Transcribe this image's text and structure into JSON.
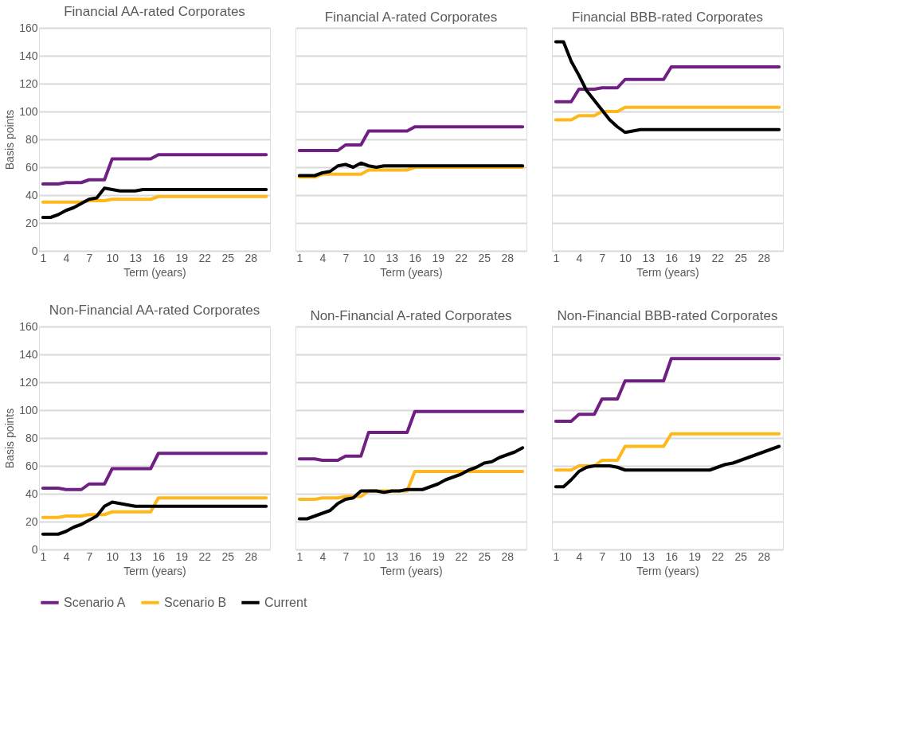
{
  "chart_data": [
    {
      "type": "line",
      "title": "Financial AA-rated Corporates",
      "xlabel": "Term (years)",
      "ylabel": "Basis points",
      "categories": [
        "1",
        null,
        null,
        "4",
        null,
        null,
        "7",
        null,
        null,
        "10",
        null,
        null,
        "13",
        null,
        null,
        "16",
        null,
        null,
        "19",
        null,
        null,
        "22",
        null,
        null,
        "25",
        null,
        null,
        "28",
        null,
        null
      ],
      "ylim": [
        0,
        160
      ],
      "yticks": [
        0,
        20,
        40,
        60,
        80,
        100,
        120,
        140,
        160
      ],
      "grid": "y",
      "legend": "bottom",
      "line_style": "solid",
      "series": [
        {
          "name": "Scenario A",
          "color": "#702082",
          "values": [
            48,
            48,
            48,
            49,
            49,
            49,
            51,
            51,
            51,
            66,
            66,
            66,
            66,
            66,
            66,
            69,
            69,
            69,
            69,
            69,
            69,
            69,
            69,
            69,
            69,
            69,
            69,
            69,
            69,
            69
          ]
        },
        {
          "name": "Scenario B",
          "color": "#ffb81c",
          "values": [
            35,
            35,
            35,
            35,
            35,
            35,
            36,
            36,
            36,
            37,
            37,
            37,
            37,
            37,
            37,
            39,
            39,
            39,
            39,
            39,
            39,
            39,
            39,
            39,
            39,
            39,
            39,
            39,
            39,
            39
          ]
        },
        {
          "name": "Current",
          "color": "#000000",
          "values": [
            24,
            24,
            26,
            29,
            31,
            34,
            37,
            38,
            45,
            44,
            43,
            43,
            43,
            44,
            44,
            44,
            44,
            44,
            44,
            44,
            44,
            44,
            44,
            44,
            44,
            44,
            44,
            44,
            44,
            44
          ]
        }
      ]
    },
    {
      "type": "line",
      "title": "Financial A-rated Corporates",
      "xlabel": "Term (years)",
      "tick_labels": "x",
      "categories": [
        "1",
        null,
        null,
        "4",
        null,
        null,
        "7",
        null,
        null,
        "10",
        null,
        null,
        "13",
        null,
        null,
        "16",
        null,
        null,
        "19",
        null,
        null,
        "22",
        null,
        null,
        "25",
        null,
        null,
        "28",
        null,
        null
      ],
      "ylim": [
        0,
        160
      ],
      "yticks": [
        0,
        20,
        40,
        60,
        80,
        100,
        120,
        140,
        160
      ],
      "grid": "y",
      "legend": "bottom",
      "line_style": "solid",
      "series": [
        {
          "name": "Scenario A",
          "color": "#702082",
          "values": [
            72,
            72,
            72,
            72,
            72,
            72,
            76,
            76,
            76,
            86,
            86,
            86,
            86,
            86,
            86,
            89,
            89,
            89,
            89,
            89,
            89,
            89,
            89,
            89,
            89,
            89,
            89,
            89,
            89,
            89
          ]
        },
        {
          "name": "Scenario B",
          "color": "#ffb81c",
          "values": [
            53,
            53,
            53,
            55,
            55,
            55,
            55,
            55,
            55,
            58,
            58,
            58,
            58,
            58,
            58,
            60,
            60,
            60,
            60,
            60,
            60,
            60,
            60,
            60,
            60,
            60,
            60,
            60,
            60,
            60
          ]
        },
        {
          "name": "Current",
          "color": "#000000",
          "values": [
            54,
            54,
            54,
            56,
            57,
            61,
            62,
            60,
            63,
            61,
            60,
            61,
            61,
            61,
            61,
            61,
            61,
            61,
            61,
            61,
            61,
            61,
            61,
            61,
            61,
            61,
            61,
            61,
            61,
            61
          ]
        }
      ]
    },
    {
      "type": "line",
      "title": "Financial BBB-rated Corporates",
      "xlabel": "Term (years)",
      "tick_labels": "x",
      "categories": [
        "1",
        null,
        null,
        "4",
        null,
        null,
        "7",
        null,
        null,
        "10",
        null,
        null,
        "13",
        null,
        null,
        "16",
        null,
        null,
        "19",
        null,
        null,
        "22",
        null,
        null,
        "25",
        null,
        null,
        "28",
        null,
        null
      ],
      "ylim": [
        0,
        160
      ],
      "yticks": [
        0,
        20,
        40,
        60,
        80,
        100,
        120,
        140,
        160
      ],
      "grid": "y",
      "legend": "bottom",
      "line_style": "solid",
      "series": [
        {
          "name": "Scenario A",
          "color": "#702082",
          "values": [
            107,
            107,
            107,
            116,
            116,
            116,
            117,
            117,
            117,
            123,
            123,
            123,
            123,
            123,
            123,
            132,
            132,
            132,
            132,
            132,
            132,
            132,
            132,
            132,
            132,
            132,
            132,
            132,
            132,
            132
          ]
        },
        {
          "name": "Scenario B",
          "color": "#ffb81c",
          "values": [
            94,
            94,
            94,
            97,
            97,
            97,
            100,
            100,
            100,
            103,
            103,
            103,
            103,
            103,
            103,
            103,
            103,
            103,
            103,
            103,
            103,
            103,
            103,
            103,
            103,
            103,
            103,
            103,
            103,
            103
          ]
        },
        {
          "name": "Current",
          "color": "#000000",
          "values": [
            150,
            150,
            136,
            126,
            115,
            108,
            101,
            94,
            89,
            85,
            86,
            87,
            87,
            87,
            87,
            87,
            87,
            87,
            87,
            87,
            87,
            87,
            87,
            87,
            87,
            87,
            87,
            87,
            87,
            87
          ]
        }
      ]
    },
    {
      "type": "line",
      "title": "Non-Financial AA-rated Corporates",
      "xlabel": "Term (years)",
      "ylabel": "Basis points",
      "categories": [
        "1",
        null,
        null,
        "4",
        null,
        null,
        "7",
        null,
        null,
        "10",
        null,
        null,
        "13",
        null,
        null,
        "16",
        null,
        null,
        "19",
        null,
        null,
        "22",
        null,
        null,
        "25",
        null,
        null,
        "28",
        null,
        null
      ],
      "ylim": [
        0,
        160
      ],
      "yticks": [
        0,
        20,
        40,
        60,
        80,
        100,
        120,
        140,
        160
      ],
      "grid": "y",
      "legend": "bottom",
      "line_style": "solid",
      "series": [
        {
          "name": "Scenario A",
          "color": "#702082",
          "values": [
            44,
            44,
            44,
            43,
            43,
            43,
            47,
            47,
            47,
            58,
            58,
            58,
            58,
            58,
            58,
            69,
            69,
            69,
            69,
            69,
            69,
            69,
            69,
            69,
            69,
            69,
            69,
            69,
            69,
            69
          ]
        },
        {
          "name": "Scenario B",
          "color": "#ffb81c",
          "values": [
            23,
            23,
            23,
            24,
            24,
            24,
            25,
            25,
            25,
            27,
            27,
            27,
            27,
            27,
            27,
            37,
            37,
            37,
            37,
            37,
            37,
            37,
            37,
            37,
            37,
            37,
            37,
            37,
            37,
            37
          ]
        },
        {
          "name": "Current",
          "color": "#000000",
          "values": [
            11,
            11,
            11,
            13,
            16,
            18,
            21,
            24,
            31,
            34,
            33,
            32,
            31,
            31,
            31,
            31,
            31,
            31,
            31,
            31,
            31,
            31,
            31,
            31,
            31,
            31,
            31,
            31,
            31,
            31
          ]
        }
      ]
    },
    {
      "type": "line",
      "title": "Non-Financial A-rated Corporates",
      "xlabel": "Term (years)",
      "tick_labels": "x",
      "categories": [
        "1",
        null,
        null,
        "4",
        null,
        null,
        "7",
        null,
        null,
        "10",
        null,
        null,
        "13",
        null,
        null,
        "16",
        null,
        null,
        "19",
        null,
        null,
        "22",
        null,
        null,
        "25",
        null,
        null,
        "28",
        null,
        null
      ],
      "ylim": [
        0,
        160
      ],
      "yticks": [
        0,
        20,
        40,
        60,
        80,
        100,
        120,
        140,
        160
      ],
      "grid": "y",
      "legend": "bottom",
      "line_style": "solid",
      "series": [
        {
          "name": "Scenario A",
          "color": "#702082",
          "values": [
            65,
            65,
            65,
            64,
            64,
            64,
            67,
            67,
            67,
            84,
            84,
            84,
            84,
            84,
            84,
            99,
            99,
            99,
            99,
            99,
            99,
            99,
            99,
            99,
            99,
            99,
            99,
            99,
            99,
            99
          ]
        },
        {
          "name": "Scenario B",
          "color": "#ffb81c",
          "values": [
            36,
            36,
            36,
            37,
            37,
            37,
            38,
            38,
            38,
            42,
            42,
            42,
            42,
            42,
            42,
            56,
            56,
            56,
            56,
            56,
            56,
            56,
            56,
            56,
            56,
            56,
            56,
            56,
            56,
            56
          ]
        },
        {
          "name": "Current",
          "color": "#000000",
          "values": [
            22,
            22,
            24,
            26,
            28,
            33,
            36,
            37,
            42,
            42,
            42,
            41,
            42,
            42,
            43,
            43,
            43,
            45,
            47,
            50,
            52,
            54,
            57,
            59,
            62,
            63,
            66,
            68,
            70,
            73
          ]
        }
      ]
    },
    {
      "type": "line",
      "title": "Non-Financial BBB-rated Corporates",
      "xlabel": "Term (years)",
      "tick_labels": "x",
      "categories": [
        "1",
        null,
        null,
        "4",
        null,
        null,
        "7",
        null,
        null,
        "10",
        null,
        null,
        "13",
        null,
        null,
        "16",
        null,
        null,
        "19",
        null,
        null,
        "22",
        null,
        null,
        "25",
        null,
        null,
        "28",
        null,
        null
      ],
      "ylim": [
        0,
        160
      ],
      "yticks": [
        0,
        20,
        40,
        60,
        80,
        100,
        120,
        140,
        160
      ],
      "grid": "y",
      "legend": "bottom",
      "line_style": "solid",
      "series": [
        {
          "name": "Scenario A",
          "color": "#702082",
          "values": [
            92,
            92,
            92,
            97,
            97,
            97,
            108,
            108,
            108,
            121,
            121,
            121,
            121,
            121,
            121,
            137,
            137,
            137,
            137,
            137,
            137,
            137,
            137,
            137,
            137,
            137,
            137,
            137,
            137,
            137
          ]
        },
        {
          "name": "Scenario B",
          "color": "#ffb81c",
          "values": [
            57,
            57,
            57,
            60,
            60,
            60,
            64,
            64,
            64,
            74,
            74,
            74,
            74,
            74,
            74,
            83,
            83,
            83,
            83,
            83,
            83,
            83,
            83,
            83,
            83,
            83,
            83,
            83,
            83,
            83
          ]
        },
        {
          "name": "Current",
          "color": "#000000",
          "values": [
            45,
            45,
            50,
            56,
            59,
            60,
            60,
            60,
            59,
            57,
            57,
            57,
            57,
            57,
            57,
            57,
            57,
            57,
            57,
            57,
            57,
            59,
            61,
            62,
            64,
            66,
            68,
            70,
            72,
            74
          ]
        }
      ]
    }
  ]
}
